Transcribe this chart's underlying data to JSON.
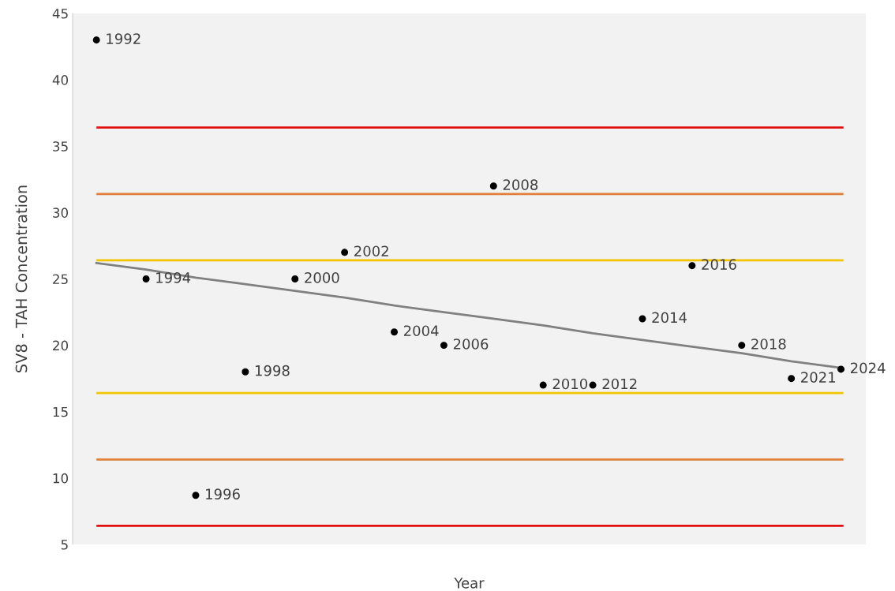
{
  "chart_data": {
    "type": "scatter",
    "xlabel": "Year",
    "ylabel": "SV8 - TAH Concentration",
    "categories": [
      null,
      null,
      null,
      null,
      null,
      null,
      null,
      null,
      null,
      null,
      null,
      null,
      null,
      null,
      null,
      null
    ],
    "series": [
      {
        "color": "#000000",
        "marker": "circle",
        "values": [
          43,
          25,
          8.7,
          18,
          25,
          27,
          21,
          20,
          32,
          17,
          17,
          22,
          26,
          20,
          17.5,
          18.2
        ]
      },
      {
        "type": "line",
        "color": "#808080",
        "marker": "none",
        "values": [
          26.2,
          25.7,
          25.1,
          24.6,
          24.1,
          23.6,
          23.0,
          22.5,
          22.0,
          21.5,
          20.9,
          20.4,
          19.9,
          19.4,
          18.8,
          18.3
        ]
      }
    ],
    "annotations": [
      "1992",
      "1994",
      "1996",
      "1998",
      "2000",
      "2002",
      "2004",
      "2006",
      "2008",
      "2010",
      "2012",
      "2014",
      "2016",
      "2018",
      "2021",
      "2024"
    ],
    "ylim": [
      5,
      45
    ],
    "yticks": [
      5,
      10,
      15,
      20,
      25,
      30,
      35,
      40,
      45
    ],
    "ref_lines": [
      {
        "axis": "y",
        "value": 36.4,
        "color": "#e01010"
      },
      {
        "axis": "y",
        "value": 31.4,
        "color": "#e0803a"
      },
      {
        "axis": "y",
        "value": 26.4,
        "color": "#f5c400"
      },
      {
        "axis": "y",
        "value": 16.4,
        "color": "#f5c400"
      },
      {
        "axis": "y",
        "value": 11.4,
        "color": "#e0803a"
      },
      {
        "axis": "y",
        "value": 6.4,
        "color": "#e01010"
      }
    ],
    "tick_labels": "y",
    "grid": false,
    "legend": false
  }
}
